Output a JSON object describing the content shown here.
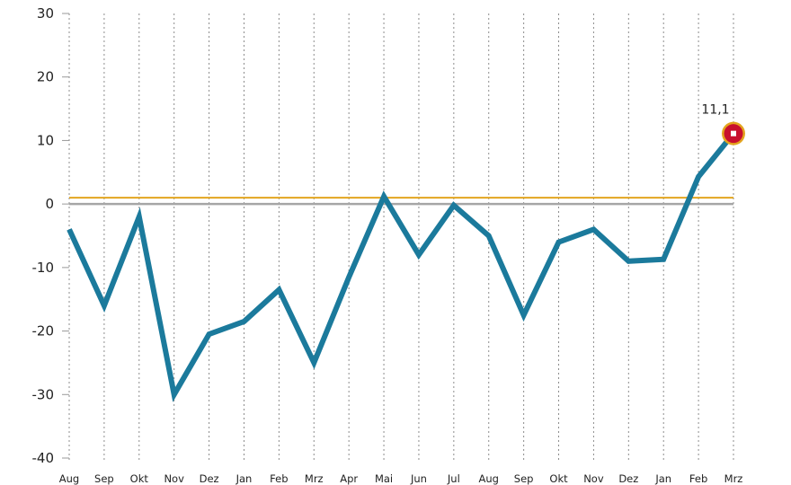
{
  "chart_data": {
    "type": "line",
    "categories": [
      "Aug",
      "Sep",
      "Okt",
      "Nov",
      "Dez",
      "Jan",
      "Feb",
      "Mrz",
      "Apr",
      "Mai",
      "Jun",
      "Jul",
      "Aug",
      "Sep",
      "Okt",
      "Nov",
      "Dez",
      "Jan",
      "Feb",
      "Mrz"
    ],
    "series": [
      {
        "values": [
          -4,
          -16,
          -2,
          -30,
          -20.5,
          -18.5,
          -13.5,
          -25,
          -11.5,
          1.2,
          -8,
          -0.2,
          -5,
          -17.5,
          -6,
          -4,
          -9,
          -8.7,
          4.3,
          11.1
        ],
        "color": "#1b7a9c"
      }
    ],
    "reference_lines": [
      {
        "y": 0,
        "color": "#a6a6a6"
      },
      {
        "y": 1,
        "color": "#e3a51f"
      }
    ],
    "yticks": [
      30,
      20,
      10,
      0,
      -10,
      -20,
      -30,
      -40
    ],
    "ytick_labels": [
      "30",
      "20",
      "10",
      "0",
      "-10",
      "-20",
      "-30",
      "-40"
    ],
    "ylim": [
      -40,
      30
    ],
    "grid": "vertical-dotted",
    "highlight": {
      "index": 19,
      "label": "11,1",
      "fill": "#c8102e",
      "ring": "#e3a51f"
    },
    "title": "",
    "xlabel": "",
    "ylabel": ""
  }
}
